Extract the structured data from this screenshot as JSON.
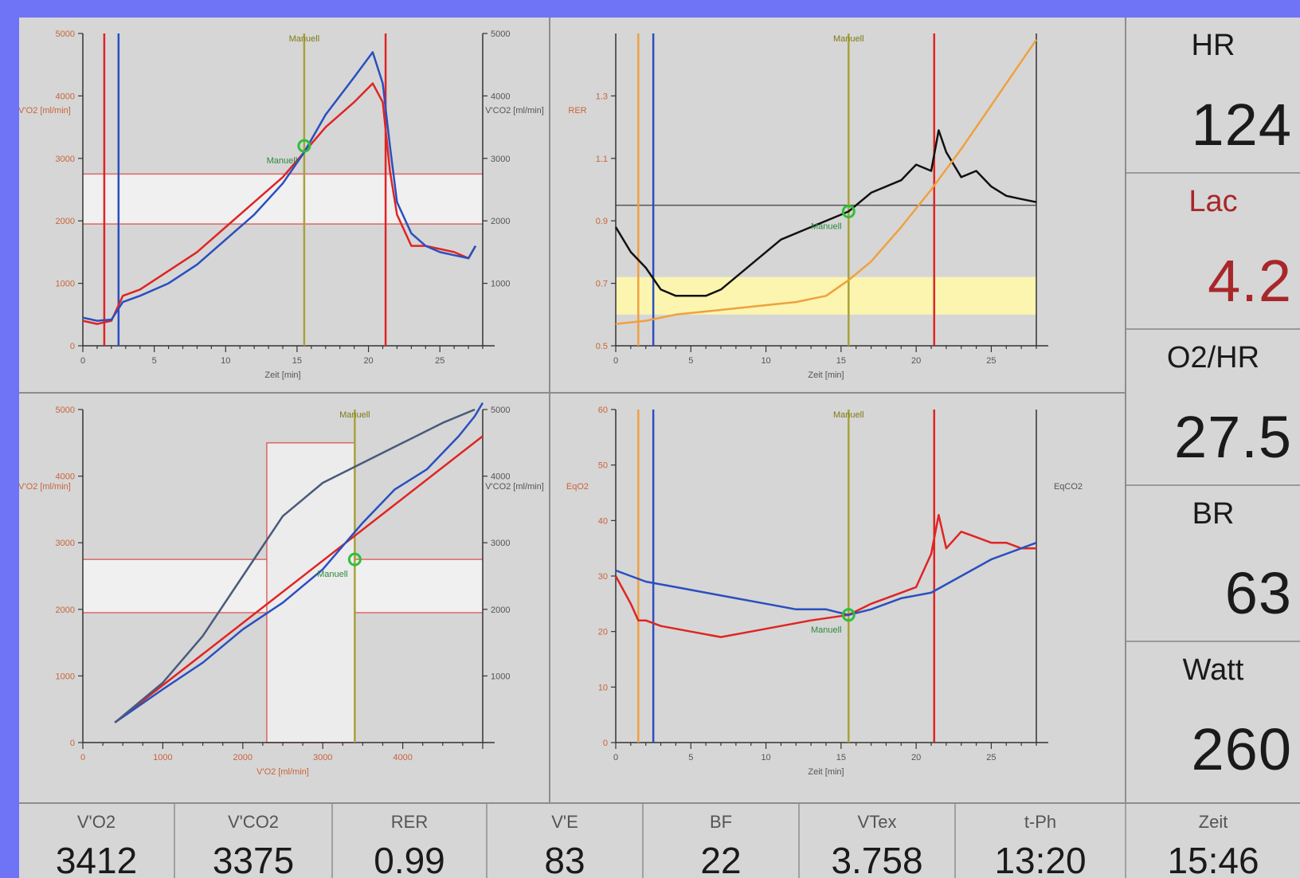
{
  "metrics": [
    {
      "label": "HR",
      "value": "124"
    },
    {
      "label": "Lac",
      "value": "4.2"
    },
    {
      "label": "O2/HR",
      "value": "27.5"
    },
    {
      "label": "BR",
      "value": "63"
    },
    {
      "label": "Watt",
      "value": "260"
    }
  ],
  "stats": [
    {
      "label": "V'O2",
      "value": "3412"
    },
    {
      "label": "V'CO2",
      "value": "3375"
    },
    {
      "label": "RER",
      "value": "0.99"
    },
    {
      "label": "V'E",
      "value": "83"
    },
    {
      "label": "BF",
      "value": "22"
    },
    {
      "label": "VTex",
      "value": "3.758"
    },
    {
      "label": "t-Ph",
      "value": "13:20"
    },
    {
      "label": "Zeit",
      "value": "15:46"
    }
  ],
  "colors": {
    "red": "#e02424",
    "blue": "#2a4fbf",
    "olive": "#a8a23a",
    "orange": "#f0a040",
    "black": "#111111",
    "marker": "#2fbf3a",
    "band_yellow": "#fbf5b0",
    "band_white": "#f0f0f0"
  },
  "chart_data": [
    {
      "type": "line",
      "xlabel": "Zeit [min]",
      "ylabel": "V'O2 [ml/min]",
      "y2label": "V'CO2 [ml/min]",
      "marker_label": "Manuell",
      "xlim": [
        0,
        28
      ],
      "ylim": [
        0,
        5000
      ],
      "x_ticks": [
        "0",
        "5",
        "10",
        "15",
        "20",
        "25"
      ],
      "y_ticks": [
        "0",
        "1000",
        "2000",
        "3000",
        "4000",
        "5000"
      ],
      "y2_ticks": [
        "1000",
        "2000",
        "3000",
        "4000",
        "5000"
      ],
      "vlines": [
        {
          "x": 1.5,
          "color": "red"
        },
        {
          "x": 2.5,
          "color": "blue"
        },
        {
          "x": 15.5,
          "color": "olive"
        },
        {
          "x": 21.2,
          "color": "red"
        }
      ],
      "series": [
        {
          "color": "red",
          "x": [
            0,
            1,
            2,
            2.8,
            4,
            6,
            8,
            10,
            12,
            14,
            15.5,
            17,
            19,
            20.3,
            21,
            21.5,
            22,
            23,
            24,
            25,
            26,
            27,
            27.5
          ],
          "y": [
            400,
            350,
            400,
            800,
            900,
            1200,
            1500,
            1900,
            2300,
            2700,
            3100,
            3500,
            3900,
            4200,
            3900,
            2800,
            2100,
            1600,
            1600,
            1550,
            1500,
            1400,
            1600
          ]
        },
        {
          "color": "blue",
          "x": [
            0,
            1,
            2,
            2.8,
            4,
            6,
            8,
            10,
            12,
            14,
            15.5,
            17,
            19,
            20.3,
            21,
            21.5,
            22,
            23,
            24,
            25,
            26,
            27,
            27.5
          ],
          "y": [
            450,
            400,
            420,
            700,
            800,
            1000,
            1300,
            1700,
            2100,
            2600,
            3100,
            3700,
            4300,
            4700,
            4200,
            3200,
            2300,
            1800,
            1600,
            1500,
            1450,
            1400,
            1600
          ]
        }
      ]
    },
    {
      "type": "line",
      "ylabel": "RER",
      "xlabel": "Zeit [min]",
      "xlim": [
        0,
        28
      ],
      "ylim": [
        0.5,
        1.5
      ],
      "y_ticks": [
        "0.5",
        "0.7",
        "0.9",
        "1.1",
        "1.3"
      ],
      "x_ticks": [
        "0",
        "5",
        "10",
        "15",
        "20",
        "25"
      ],
      "marker_label": "Manuell",
      "vlines": [
        {
          "x": 1.5,
          "color": "orange"
        },
        {
          "x": 2.5,
          "color": "blue"
        },
        {
          "x": 15.5,
          "color": "olive"
        },
        {
          "x": 21.2,
          "color": "red"
        }
      ],
      "series": [
        {
          "color": "black",
          "x": [
            0,
            1,
            2,
            3,
            4,
            6,
            7,
            9,
            11,
            13,
            15,
            15.5,
            17,
            19,
            20,
            21,
            21.5,
            22,
            23,
            24,
            25,
            26,
            27,
            28
          ],
          "y": [
            0.88,
            0.8,
            0.75,
            0.68,
            0.66,
            0.66,
            0.68,
            0.76,
            0.84,
            0.88,
            0.92,
            0.93,
            0.99,
            1.03,
            1.08,
            1.06,
            1.19,
            1.12,
            1.04,
            1.06,
            1.01,
            0.98,
            0.97,
            0.96
          ]
        },
        {
          "color": "orange",
          "x": [
            0,
            2,
            4,
            6,
            8,
            10,
            12,
            14,
            15.5,
            17,
            19,
            21,
            23,
            25,
            27,
            28
          ],
          "y": [
            0.57,
            0.58,
            0.6,
            0.61,
            0.62,
            0.63,
            0.64,
            0.66,
            0.71,
            0.77,
            0.88,
            1.0,
            1.13,
            1.27,
            1.41,
            1.48
          ]
        }
      ],
      "hline": 0.95,
      "band_yellow": [
        0.6,
        0.72
      ]
    },
    {
      "type": "line",
      "xlabel": "V'O2 [ml/min]",
      "ylabel": "V'O2 [ml/min]",
      "y2label": "V'CO2 [ml/min]",
      "marker_label": "Manuell",
      "xlim": [
        0,
        5000
      ],
      "ylim": [
        0,
        5000
      ],
      "x_ticks": [
        "0",
        "1000",
        "2000",
        "3000",
        "4000"
      ],
      "y_ticks": [
        "0",
        "1000",
        "2000",
        "3000",
        "4000",
        "5000"
      ],
      "y2_ticks": [
        "1000",
        "2000",
        "3000",
        "4000",
        "5000"
      ],
      "series": [
        {
          "color": "red",
          "x": [
            400,
            5000
          ],
          "y": [
            300,
            4600
          ]
        },
        {
          "color": "blue",
          "x": [
            400,
            1000,
            1500,
            2000,
            2500,
            3000,
            3500,
            3900,
            4300,
            4700,
            4900,
            5000
          ],
          "y": [
            300,
            800,
            1200,
            1700,
            2100,
            2600,
            3300,
            3800,
            4100,
            4600,
            4900,
            5100
          ]
        },
        {
          "color": "gray",
          "x": [
            400,
            1000,
            1500,
            2000,
            2500,
            3000,
            3500,
            4000,
            4500,
            4900
          ],
          "y": [
            300,
            900,
            1600,
            2500,
            3400,
            3900,
            4200,
            4500,
            4800,
            5000
          ]
        }
      ]
    },
    {
      "type": "line",
      "xlabel": "Zeit [min]",
      "ylabel": "EqO2",
      "y2label": "EqCO2",
      "marker_label": "Manuell",
      "xlim": [
        0,
        28
      ],
      "ylim": [
        0,
        60
      ],
      "y_ticks": [
        "0",
        "10",
        "20",
        "30",
        "40",
        "50",
        "60"
      ],
      "x_ticks": [
        "0",
        "5",
        "10",
        "15",
        "20",
        "25"
      ],
      "vlines": [
        {
          "x": 1.5,
          "color": "orange"
        },
        {
          "x": 2.5,
          "color": "blue"
        },
        {
          "x": 15.5,
          "color": "olive"
        },
        {
          "x": 21.2,
          "color": "red"
        }
      ],
      "series": [
        {
          "color": "red",
          "x": [
            0,
            1,
            1.5,
            2,
            3,
            5,
            7,
            9,
            11,
            13,
            15.5,
            17,
            19,
            20,
            21,
            21.5,
            22,
            23,
            24,
            25,
            26,
            27,
            28
          ],
          "y": [
            30,
            25,
            22,
            22,
            21,
            20,
            19,
            20,
            21,
            22,
            23,
            25,
            27,
            28,
            34,
            41,
            35,
            38,
            37,
            36,
            36,
            35,
            35
          ]
        },
        {
          "color": "blue",
          "x": [
            0,
            2,
            4,
            6,
            8,
            10,
            12,
            14,
            15.5,
            17,
            19,
            21,
            23,
            25,
            27,
            28
          ],
          "y": [
            31,
            29,
            28,
            27,
            26,
            25,
            24,
            24,
            23,
            24,
            26,
            27,
            30,
            33,
            35,
            36
          ]
        }
      ]
    }
  ]
}
